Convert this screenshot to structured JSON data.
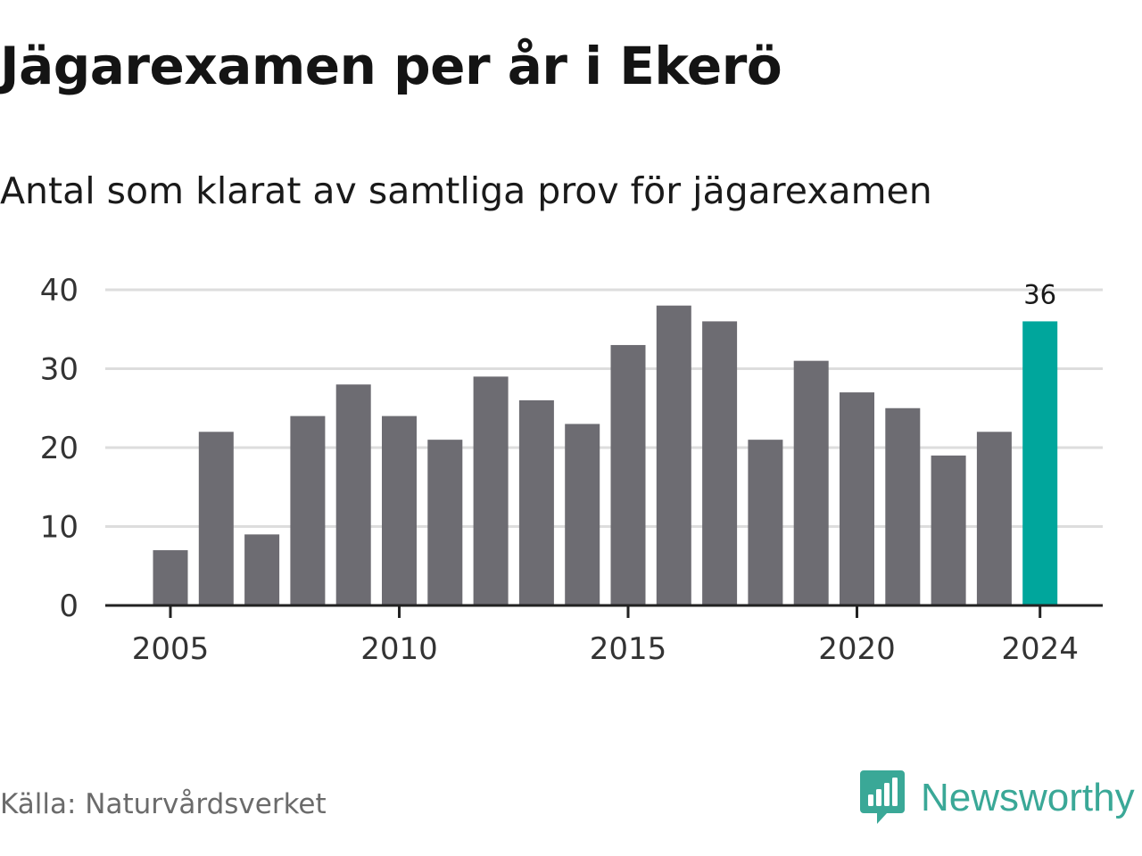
{
  "title": "Jägarexamen per år i Ekerö",
  "subtitle": "Antal som klarat av samtliga prov för jägarexamen",
  "source": "Källa: Naturvårdsverket",
  "brand": {
    "name": "Newsworthy",
    "icon": "newsworthy-logo-icon"
  },
  "colors": {
    "bar": "#6d6c72",
    "highlight": "#00a69c",
    "grid": "#dddddd",
    "axis": "#222222",
    "brand": "#3aa897"
  },
  "chart_data": {
    "type": "bar",
    "title": "Jägarexamen per år i Ekerö",
    "subtitle": "Antal som klarat av samtliga prov för jägarexamen",
    "xlabel": "",
    "ylabel": "",
    "categories": [
      2005,
      2006,
      2007,
      2008,
      2009,
      2010,
      2011,
      2012,
      2013,
      2014,
      2015,
      2016,
      2017,
      2018,
      2019,
      2020,
      2021,
      2022,
      2023,
      2024
    ],
    "values": [
      7,
      22,
      9,
      24,
      28,
      24,
      21,
      29,
      26,
      23,
      33,
      38,
      36,
      21,
      31,
      27,
      25,
      19,
      22,
      36
    ],
    "ylim": [
      0,
      40
    ],
    "y_ticks": [
      0,
      10,
      20,
      30,
      40
    ],
    "x_ticks": [
      2005,
      2010,
      2015,
      2020,
      2024
    ],
    "highlight": {
      "category": 2024,
      "label": "36"
    },
    "grid": true,
    "legend": "none"
  }
}
